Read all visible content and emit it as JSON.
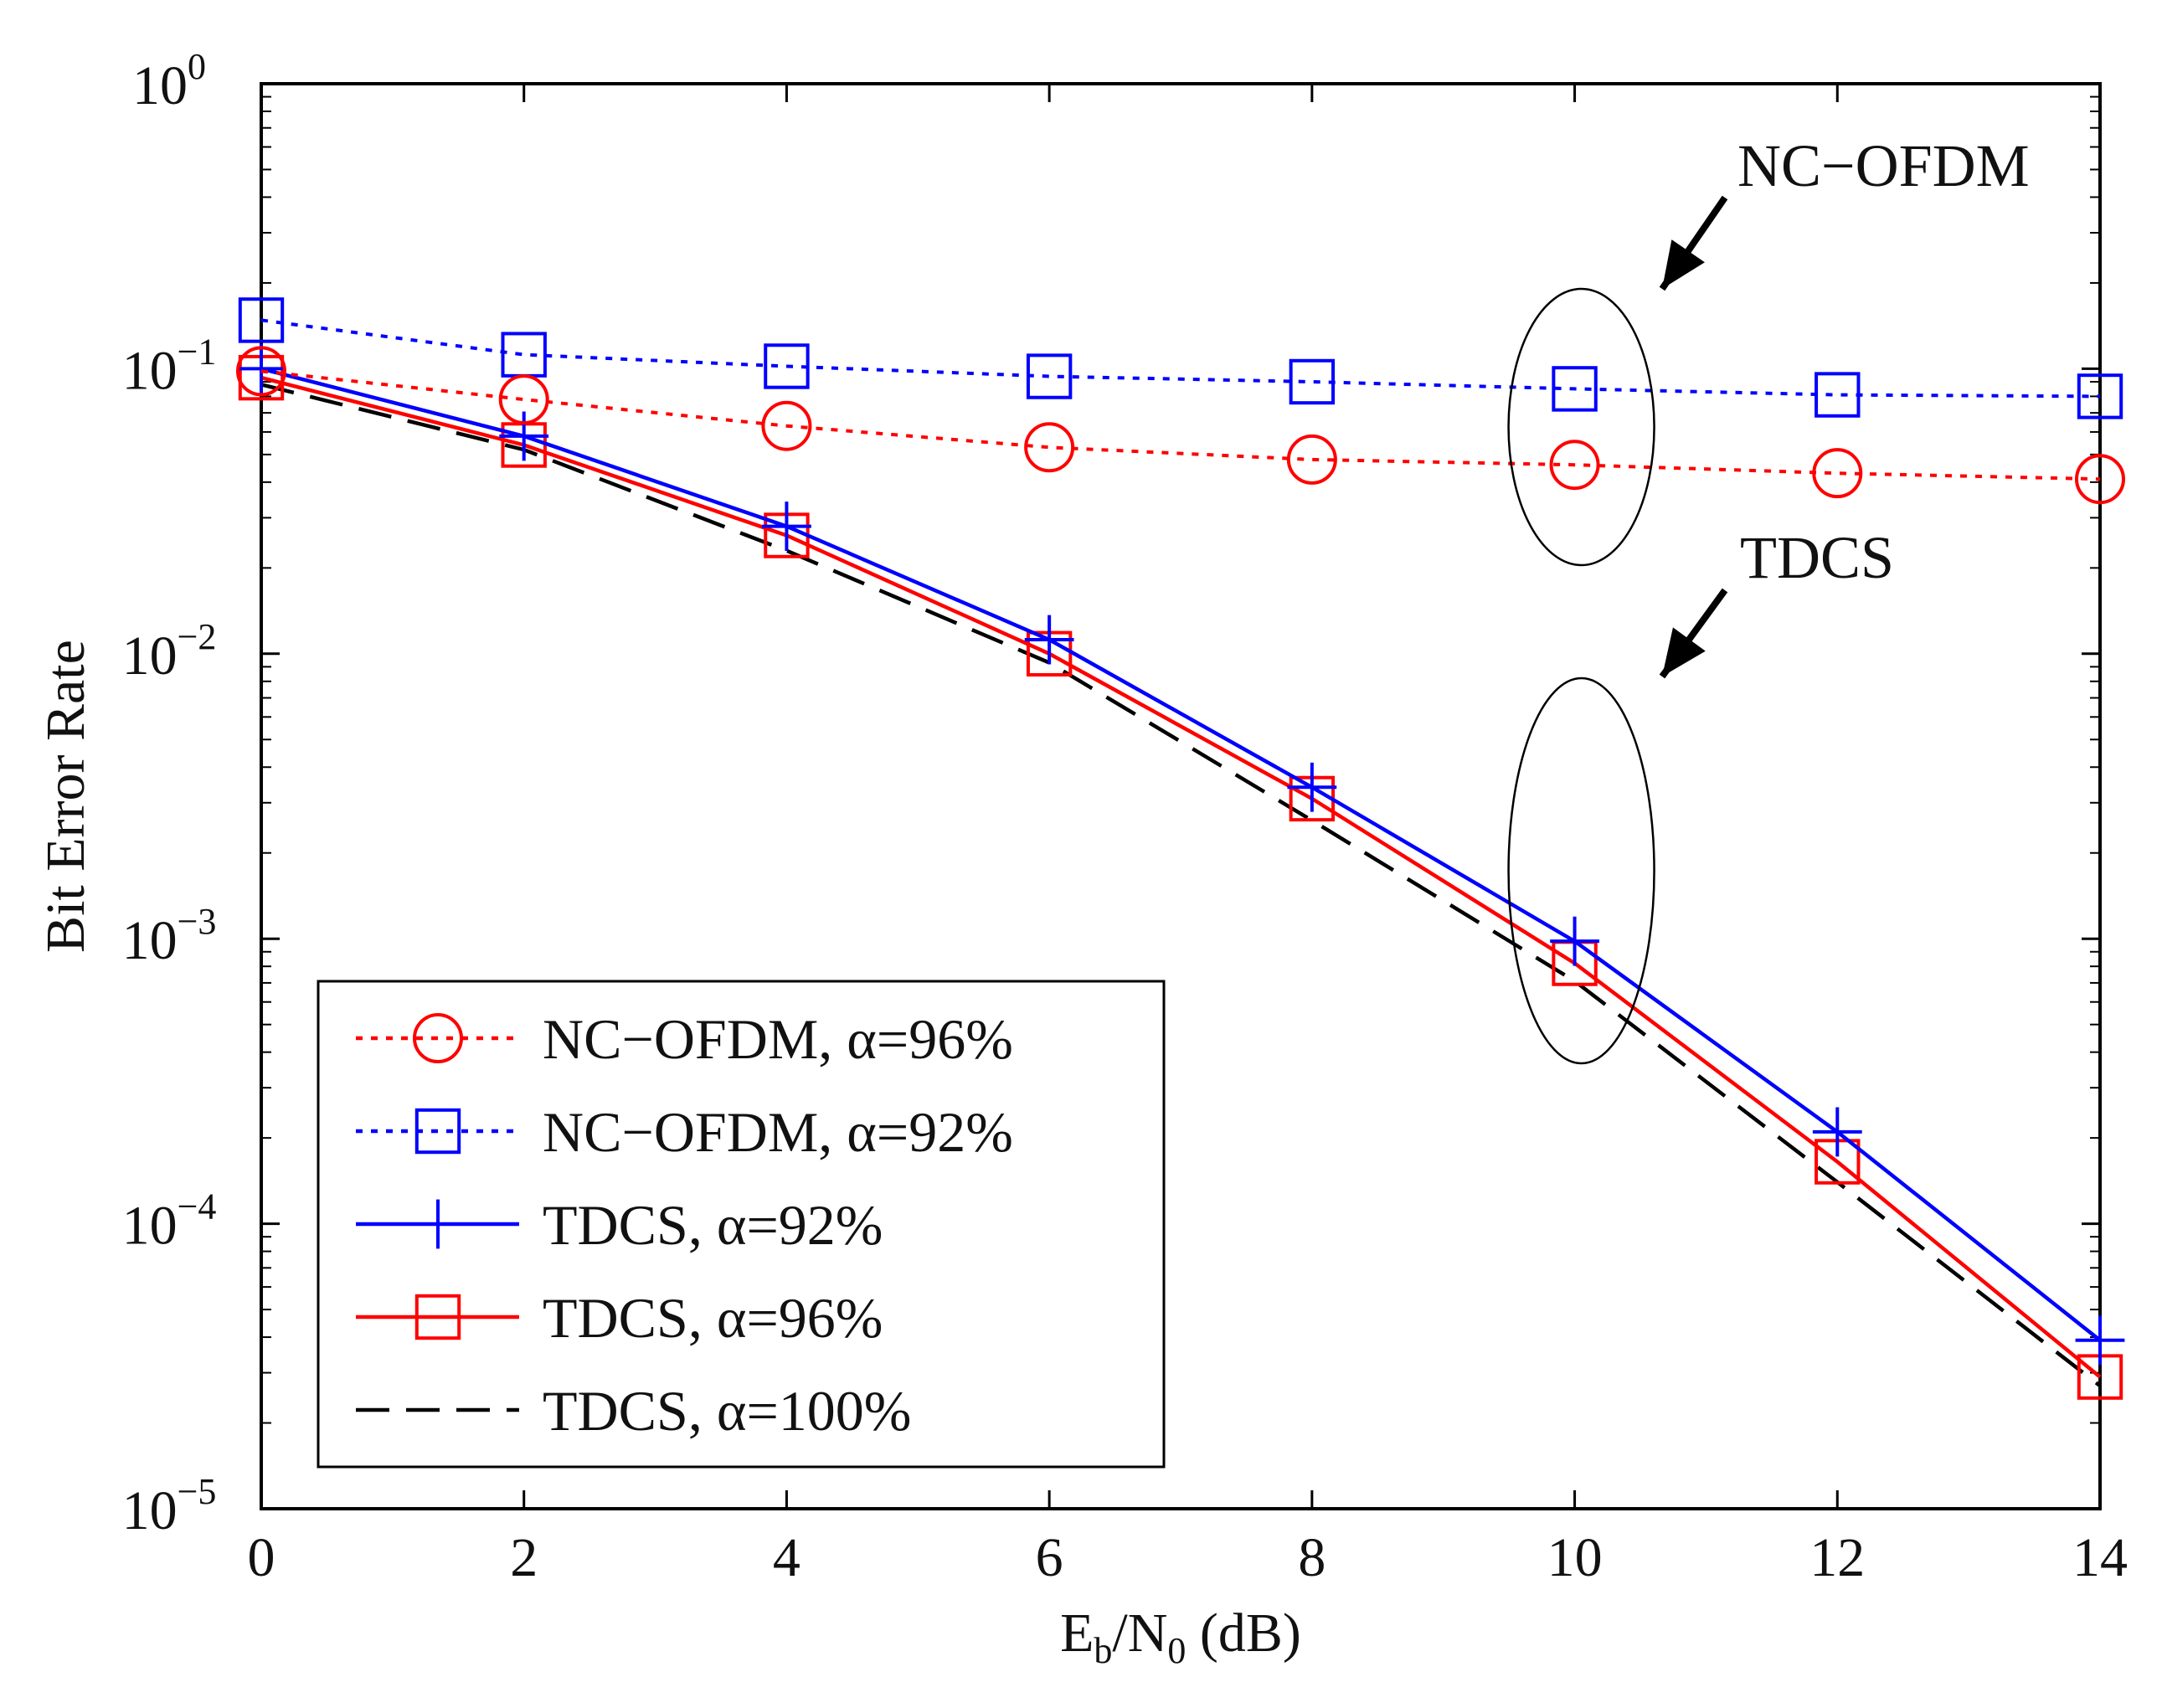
{
  "chart_data": {
    "type": "line",
    "x_scale": "linear",
    "y_scale": "log",
    "xlim": [
      0,
      14
    ],
    "ylim": [
      1e-05,
      1
    ],
    "x_ticks": [
      0,
      2,
      4,
      6,
      8,
      10,
      12,
      14
    ],
    "y_ticks": [
      {
        "base": "10",
        "exp": "0",
        "value": 1
      },
      {
        "base": "10",
        "exp": "−1",
        "value": 0.1
      },
      {
        "base": "10",
        "exp": "−2",
        "value": 0.01
      },
      {
        "base": "10",
        "exp": "−3",
        "value": 0.001
      },
      {
        "base": "10",
        "exp": "−4",
        "value": 0.0001
      },
      {
        "base": "10",
        "exp": "−5",
        "value": 1e-05
      }
    ],
    "xlabel": {
      "main": "E",
      "sub1": "b",
      "mid": "/N",
      "sub2": "0",
      "tail": " (dB)"
    },
    "ylabel": "Bit Error Rate",
    "grid": false,
    "legend_position": "bottom-left",
    "series": [
      {
        "name": "NC−OFDM, α=96%",
        "color": "#ff0000",
        "line": "dotted",
        "marker": "circle",
        "x": [
          0,
          2,
          4,
          6,
          8,
          10,
          12,
          14
        ],
        "y": [
          0.098,
          0.078,
          0.063,
          0.053,
          0.048,
          0.046,
          0.043,
          0.041
        ]
      },
      {
        "name": "NC−OFDM, α=92%",
        "color": "#0000ff",
        "line": "dotted",
        "marker": "square",
        "x": [
          0,
          2,
          4,
          6,
          8,
          10,
          12,
          14
        ],
        "y": [
          0.148,
          0.112,
          0.102,
          0.094,
          0.09,
          0.085,
          0.081,
          0.08
        ]
      },
      {
        "name": "TDCS,  α=92%",
        "color": "#0000ff",
        "line": "solid",
        "marker": "plus",
        "x": [
          0,
          2,
          4,
          6,
          8,
          10,
          12,
          14
        ],
        "y": [
          0.1,
          0.058,
          0.028,
          0.0112,
          0.0034,
          0.00098,
          0.00021,
          3.9e-05
        ]
      },
      {
        "name": "TDCS, α=96%",
        "color": "#ff0000",
        "line": "solid",
        "marker": "square",
        "x": [
          0,
          2,
          4,
          6,
          8,
          10,
          12,
          14
        ],
        "y": [
          0.093,
          0.054,
          0.026,
          0.01,
          0.0031,
          0.00082,
          0.000165,
          2.9e-05
        ]
      },
      {
        "name": "TDCS, α=100%",
        "color": "#000000",
        "line": "dashed",
        "marker": "none",
        "x": [
          0,
          2,
          4,
          6,
          8,
          10,
          12,
          14
        ],
        "y": [
          0.088,
          0.052,
          0.023,
          0.0093,
          0.0026,
          0.00071,
          0.00014,
          2.7e-05
        ]
      }
    ],
    "annotations": [
      {
        "text": "NC−OFDM",
        "target": "NC−OFDM curves at 10 dB"
      },
      {
        "text": "TDCS",
        "target": "TDCS curves at 10 dB"
      }
    ]
  }
}
